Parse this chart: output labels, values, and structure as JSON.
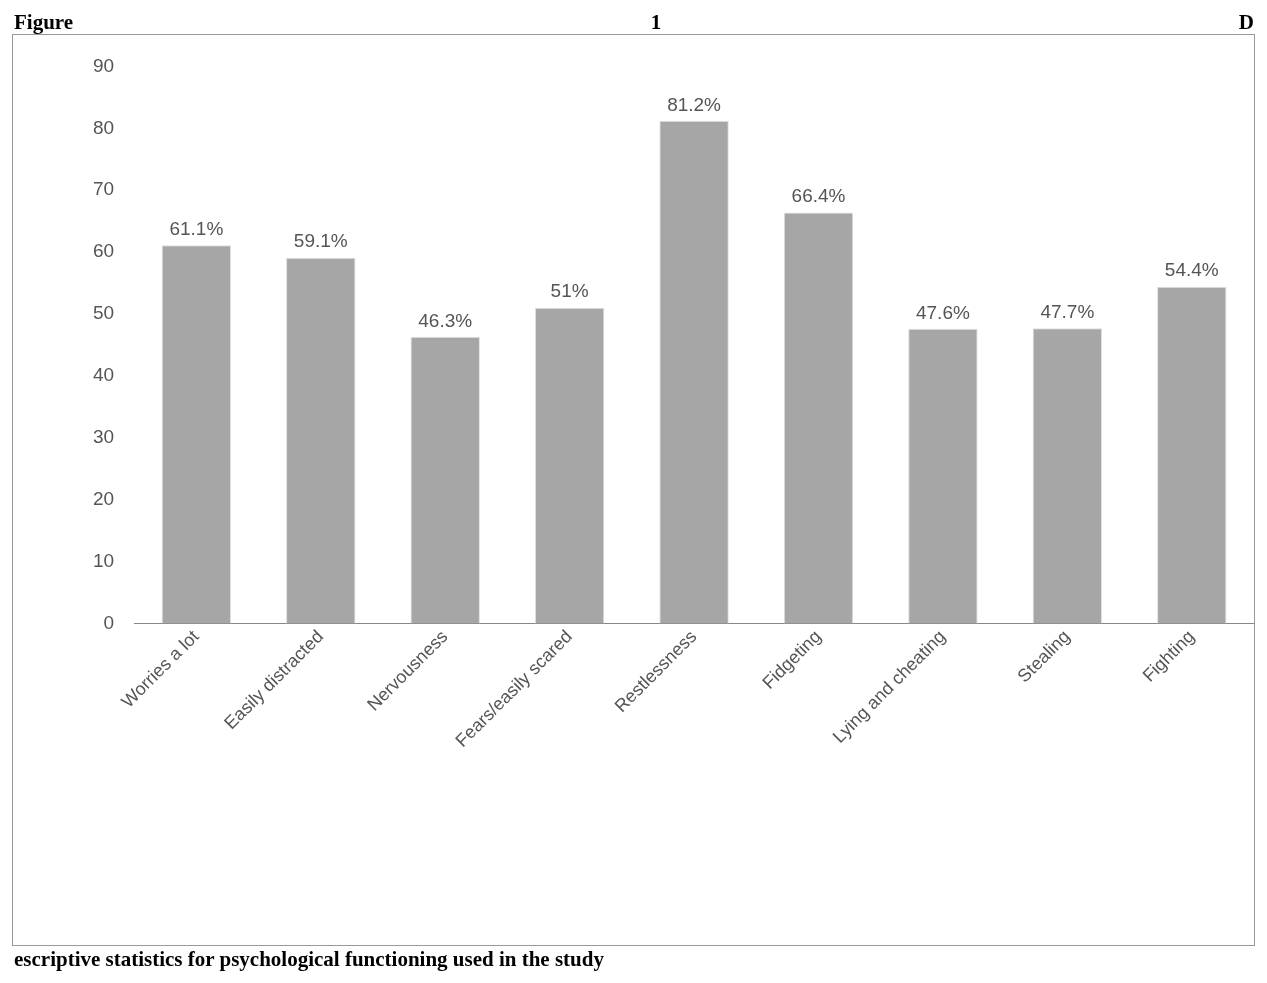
{
  "chart_data": {
    "type": "bar",
    "title": "Figure 1 D",
    "annotations": [
      "escriptive statistics for psychological functioning used in the study"
    ],
    "categories": [
      "Worries a lot",
      "Easily distracted",
      "Nervousness",
      "Fears/easily scared",
      "Restlessness",
      "Fidgeting",
      "Lying and cheating",
      "Stealing",
      "Fighting"
    ],
    "values": [
      61.1,
      59.1,
      46.3,
      51,
      81.2,
      66.4,
      47.6,
      47.7,
      54.4
    ],
    "value_labels": [
      "61.1%",
      "59.1%",
      "46.3%",
      "51%",
      "81.2%",
      "66.4%",
      "47.6%",
      "47.7%",
      "54.4%"
    ],
    "color": "#a6a6a6",
    "ylim": [
      0,
      90
    ],
    "yticks": [
      0,
      10,
      20,
      30,
      40,
      50,
      60,
      70,
      80,
      90
    ],
    "grid": false,
    "legend": false
  }
}
